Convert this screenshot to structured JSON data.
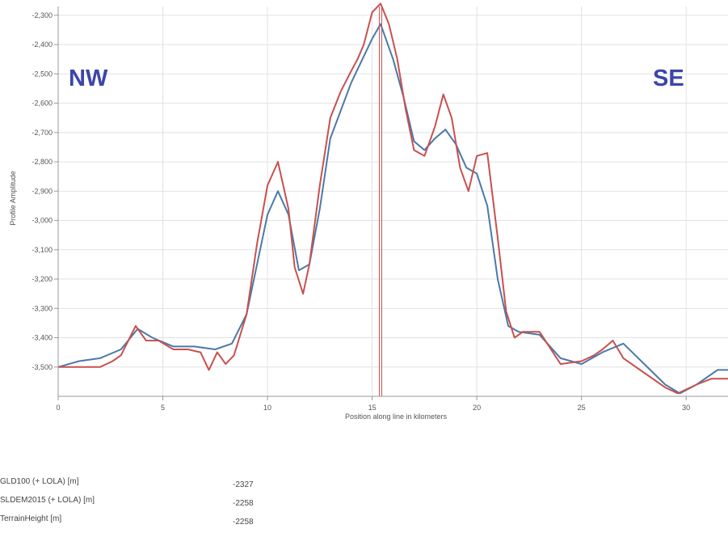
{
  "chart_data": {
    "type": "line",
    "xlabel": "Position along line in kilometers",
    "ylabel": "Profile Amplitude",
    "xlim": [
      0,
      32
    ],
    "ylim": [
      -3600,
      -2270
    ],
    "x_ticks": [
      0,
      5,
      10,
      15,
      20,
      25,
      30
    ],
    "y_ticks": [
      -2300,
      -2400,
      -2500,
      -2600,
      -2700,
      -2800,
      -2900,
      -3000,
      -3100,
      -3200,
      -3300,
      -3400,
      -3500
    ],
    "y_tick_labels": [
      "-2,300",
      "-2,400",
      "-2,500",
      "-2,600",
      "-2,700",
      "-2,800",
      "-2,900",
      "-3,000",
      "-3,100",
      "-3,200",
      "-3,300",
      "-3,400",
      "-3,500"
    ],
    "grid": true,
    "cursor_x": 15.4,
    "annotations": [
      {
        "text": "NW",
        "x": 1.0,
        "y": -2500
      },
      {
        "text": "SE",
        "x": 28.6,
        "y": -2500
      }
    ],
    "series": [
      {
        "color": "#4a7aa8",
        "x": [
          0,
          1,
          2,
          3,
          3.8,
          4.5,
          5.5,
          6.5,
          7.5,
          8.3,
          9,
          9.5,
          10,
          10.5,
          11,
          11.5,
          12,
          12.5,
          13,
          14,
          15,
          15.4,
          16,
          16.5,
          17,
          17.5,
          18,
          18.5,
          19,
          19.5,
          20,
          20.5,
          21,
          21.5,
          22,
          23,
          24,
          25,
          26,
          27,
          28,
          29,
          29.7,
          30.5,
          31.5,
          32
        ],
        "y": [
          -3500,
          -3480,
          -3470,
          -3440,
          -3370,
          -3400,
          -3430,
          -3430,
          -3440,
          -3420,
          -3320,
          -3150,
          -2980,
          -2900,
          -2980,
          -3170,
          -3150,
          -2960,
          -2720,
          -2530,
          -2380,
          -2330,
          -2450,
          -2580,
          -2730,
          -2760,
          -2720,
          -2690,
          -2740,
          -2820,
          -2840,
          -2950,
          -3200,
          -3360,
          -3380,
          -3390,
          -3470,
          -3490,
          -3450,
          -3420,
          -3490,
          -3560,
          -3590,
          -3560,
          -3510,
          -3510
        ]
      },
      {
        "color": "#c8504f",
        "x": [
          0,
          1,
          2,
          2.6,
          3,
          3.7,
          4.2,
          4.8,
          5.5,
          6.2,
          6.8,
          7.2,
          7.6,
          8,
          8.4,
          9,
          9.5,
          10,
          10.5,
          11,
          11.3,
          11.7,
          12,
          12.5,
          13,
          13.5,
          14,
          14.3,
          14.6,
          15,
          15.4,
          15.8,
          16.2,
          16.6,
          17,
          17.5,
          18,
          18.4,
          18.8,
          19.2,
          19.6,
          20,
          20.5,
          21,
          21.4,
          21.8,
          22.2,
          23,
          24,
          25,
          25.6,
          26,
          26.5,
          27,
          28,
          29,
          29.6,
          30.5,
          31.2,
          32
        ],
        "y": [
          -3500,
          -3500,
          -3500,
          -3480,
          -3460,
          -3360,
          -3410,
          -3410,
          -3440,
          -3440,
          -3450,
          -3510,
          -3450,
          -3490,
          -3460,
          -3320,
          -3080,
          -2880,
          -2800,
          -2960,
          -3160,
          -3250,
          -3150,
          -2880,
          -2650,
          -2560,
          -2490,
          -2450,
          -2400,
          -2290,
          -2260,
          -2330,
          -2450,
          -2620,
          -2760,
          -2780,
          -2680,
          -2570,
          -2650,
          -2820,
          -2900,
          -2780,
          -2770,
          -3060,
          -3310,
          -3400,
          -3380,
          -3380,
          -3490,
          -3480,
          -3460,
          -3440,
          -3410,
          -3470,
          -3520,
          -3570,
          -3590,
          -3560,
          -3540,
          -3540
        ]
      }
    ]
  },
  "readout": [
    {
      "name": "GLD100 (+ LOLA) [m]",
      "value": "-2327"
    },
    {
      "name": "SLDEM2015 (+ LOLA) [m]",
      "value": "-2258"
    },
    {
      "name": "TerrainHeight [m]",
      "value": "-2258"
    }
  ]
}
